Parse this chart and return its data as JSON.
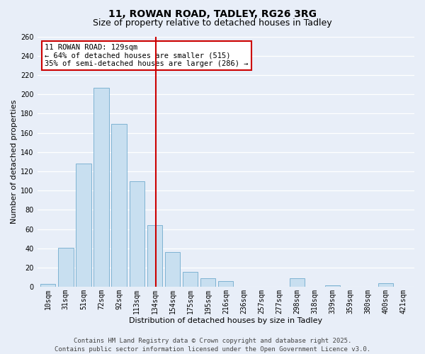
{
  "title": "11, ROWAN ROAD, TADLEY, RG26 3RG",
  "subtitle": "Size of property relative to detached houses in Tadley",
  "xlabel": "Distribution of detached houses by size in Tadley",
  "ylabel": "Number of detached properties",
  "bin_labels": [
    "10sqm",
    "31sqm",
    "51sqm",
    "72sqm",
    "92sqm",
    "113sqm",
    "134sqm",
    "154sqm",
    "175sqm",
    "195sqm",
    "216sqm",
    "236sqm",
    "257sqm",
    "277sqm",
    "298sqm",
    "318sqm",
    "339sqm",
    "359sqm",
    "380sqm",
    "400sqm",
    "421sqm"
  ],
  "bar_heights": [
    3,
    41,
    128,
    207,
    169,
    110,
    64,
    36,
    16,
    9,
    6,
    0,
    0,
    0,
    9,
    0,
    2,
    0,
    0,
    4,
    0
  ],
  "bar_color": "#c8dff0",
  "bar_edge_color": "#7fb3d3",
  "vline_bar_index": 6,
  "vline_color": "#cc0000",
  "ylim": [
    0,
    260
  ],
  "yticks": [
    0,
    20,
    40,
    60,
    80,
    100,
    120,
    140,
    160,
    180,
    200,
    220,
    240,
    260
  ],
  "annotation_title": "11 ROWAN ROAD: 129sqm",
  "annotation_line1": "← 64% of detached houses are smaller (515)",
  "annotation_line2": "35% of semi-detached houses are larger (286) →",
  "annotation_box_color": "#ffffff",
  "annotation_box_edge_color": "#cc0000",
  "footer_line1": "Contains HM Land Registry data © Crown copyright and database right 2025.",
  "footer_line2": "Contains public sector information licensed under the Open Government Licence v3.0.",
  "bg_color": "#e8eef8",
  "grid_color": "#ffffff",
  "title_fontsize": 10,
  "subtitle_fontsize": 9,
  "axis_label_fontsize": 8,
  "tick_fontsize": 7,
  "annotation_fontsize": 7.5,
  "footer_fontsize": 6.5
}
